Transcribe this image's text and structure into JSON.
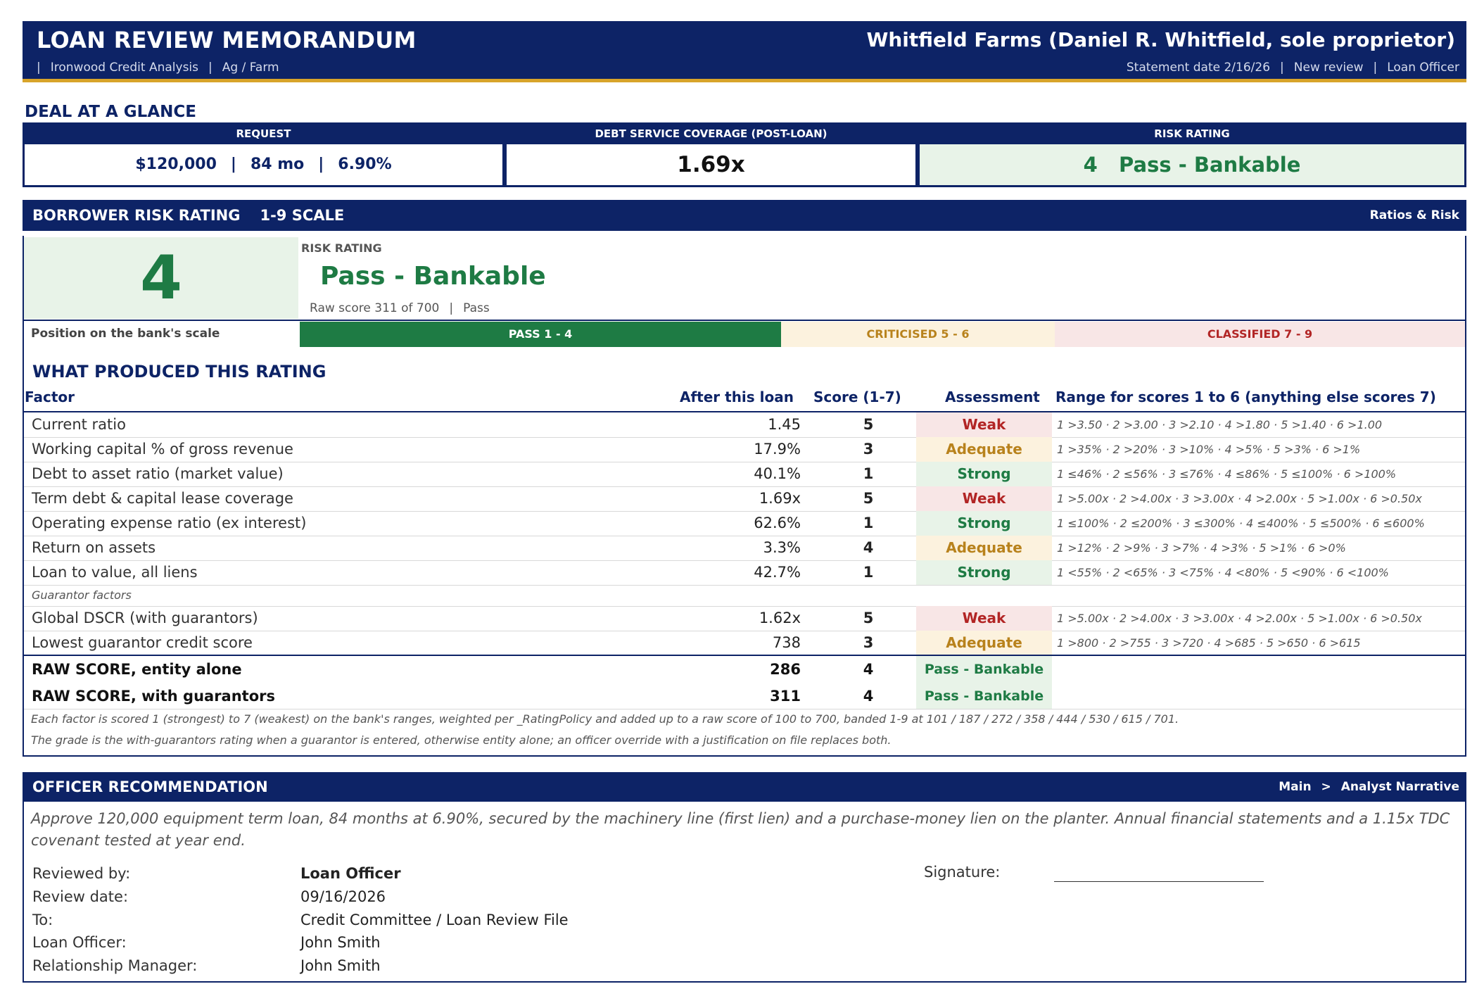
{
  "header": {
    "title": "LOAN REVIEW MEMORANDUM",
    "borrower": "Whitfield Farms (Daniel R. Whitfield, sole proprietor)",
    "sub_left": [
      "Ironwood Credit Analysis",
      "Ag / Farm"
    ],
    "sub_right": [
      "Statement date 2/16/26",
      "New review",
      "Loan Officer"
    ]
  },
  "deal_at_a_glance": {
    "title": "DEAL AT A GLANCE",
    "request_label": "REQUEST",
    "request_amount": "$120,000",
    "request_term": "84 mo",
    "request_rate": "6.90%",
    "dscr_label": "DEBT SERVICE COVERAGE  (POST-LOAN)",
    "dscr_value": "1.69x",
    "risk_label": "RISK RATING",
    "risk_value": "4   Pass - Bankable"
  },
  "risk_section": {
    "title": "BORROWER RISK RATING",
    "scale_note": "1-9 SCALE",
    "nav": "Ratios & Risk",
    "grade": "4",
    "rating_label": "RISK RATING",
    "rating_name": "Pass - Bankable",
    "raw_score": "Raw score 311 of 700",
    "raw_class": "Pass",
    "scale_label": "Position on the bank's scale",
    "bands": [
      {
        "label": "PASS  1 - 4",
        "bg": "#1e7b44",
        "fg": "#ffffff"
      },
      {
        "label": "CRITICISED  5 - 6",
        "bg": "#fcf2de",
        "fg": "#b8821c"
      },
      {
        "label": "CLASSIFIED  7 - 9",
        "bg": "#f8e6e6",
        "fg": "#b22525"
      }
    ]
  },
  "factors": {
    "title": "WHAT PRODUCED THIS RATING",
    "headers": {
      "factor": "Factor",
      "after": "After this loan",
      "score": "Score (1-7)",
      "assessment": "Assessment",
      "range": "Range for scores 1 to 6  (anything else scores 7)"
    },
    "rows": [
      {
        "name": "Current ratio",
        "value": "1.45",
        "score": "5",
        "assessment": "Weak",
        "range": "1 >3.50 · 2 >3.00 · 3 >2.10 · 4 >1.80 · 5 >1.40 · 6 >1.00"
      },
      {
        "name": "Working capital % of gross revenue",
        "value": "17.9%",
        "score": "3",
        "assessment": "Adequate",
        "range": "1 >35% · 2 >20% · 3 >10% · 4 >5% · 5 >3% · 6 >1%"
      },
      {
        "name": "Debt to asset ratio (market value)",
        "value": "40.1%",
        "score": "1",
        "assessment": "Strong",
        "range": "1 ≤46% · 2 ≤56% · 3 ≤76% · 4 ≤86% · 5 ≤100% · 6 >100%"
      },
      {
        "name": "Term debt & capital lease coverage",
        "value": "1.69x",
        "score": "5",
        "assessment": "Weak",
        "range": "1 >5.00x · 2 >4.00x · 3 >3.00x · 4 >2.00x · 5 >1.00x · 6 >0.50x"
      },
      {
        "name": "Operating expense ratio (ex interest)",
        "value": "62.6%",
        "score": "1",
        "assessment": "Strong",
        "range": "1 ≤100% · 2 ≤200% · 3 ≤300% · 4 ≤400% · 5 ≤500% · 6 ≤600%"
      },
      {
        "name": "Return on assets",
        "value": "3.3%",
        "score": "4",
        "assessment": "Adequate",
        "range": "1 >12% · 2 >9% · 3 >7% · 4 >3% · 5 >1% · 6 >0%"
      },
      {
        "name": "Loan to value, all liens",
        "value": "42.7%",
        "score": "1",
        "assessment": "Strong",
        "range": "1 <55% · 2 <65% · 3 <75% · 4 <80% · 5 <90% · 6 <100%"
      }
    ],
    "guarantor_label": "Guarantor factors",
    "guarantor_rows": [
      {
        "name": "Global DSCR (with guarantors)",
        "value": "1.62x",
        "score": "5",
        "assessment": "Weak",
        "range": "1 >5.00x · 2 >4.00x · 3 >3.00x · 4 >2.00x · 5 >1.00x · 6 >0.50x"
      },
      {
        "name": "Lowest guarantor credit score",
        "value": "738",
        "score": "3",
        "assessment": "Adequate",
        "range": "1 >800 · 2 >755 · 3 >720 · 4 >685 · 5 >650 · 6 >615"
      }
    ],
    "totals": [
      {
        "name": "RAW SCORE, entity alone",
        "value": "286",
        "score": "4",
        "assessment": "Pass - Bankable"
      },
      {
        "name": "RAW SCORE, with guarantors",
        "value": "311",
        "score": "4",
        "assessment": "Pass - Bankable"
      }
    ],
    "footnotes": [
      "Each factor is scored 1 (strongest) to 7 (weakest) on the bank's ranges, weighted per _RatingPolicy and added up to a raw score of 100 to 700, banded 1-9 at 101 / 187 / 272 / 358 / 444 / 530 / 615 / 701.",
      "The grade is the with-guarantors rating when a guarantor is entered, otherwise entity alone; an officer override with a justification on file replaces both."
    ]
  },
  "officer": {
    "title": "OFFICER RECOMMENDATION",
    "nav_main": "Main",
    "nav_arrow": ">",
    "nav_sub": "Analyst Narrative",
    "text": "Approve 120,000 equipment term loan, 84 months at 6.90%, secured by the machinery line (first lien) and a purchase-money lien on the planter. Annual financial statements and a 1.15x TDC covenant tested at year end.",
    "fields": [
      {
        "k": "Reviewed by:",
        "v": "Loan Officer"
      },
      {
        "k": "Review date:",
        "v": "09/16/2026"
      },
      {
        "k": "To:",
        "v": "Credit Committee / Loan Review File"
      },
      {
        "k": "Loan Officer:",
        "v": "John Smith"
      },
      {
        "k": "Relationship Manager:",
        "v": "John Smith"
      }
    ],
    "signature_label": "Signature:"
  }
}
